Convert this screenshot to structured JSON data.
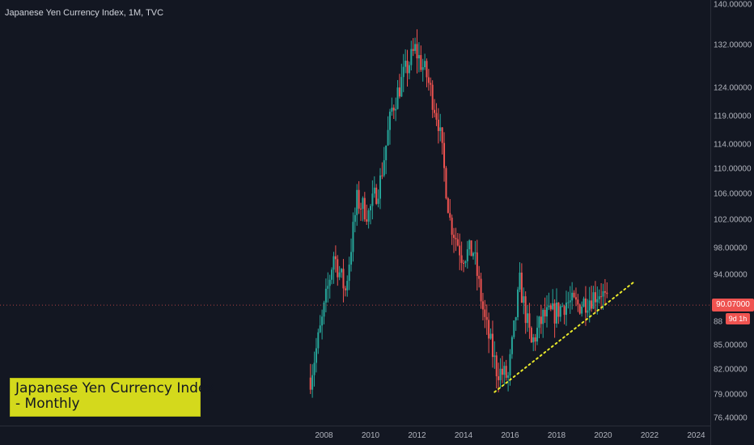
{
  "header": {
    "title": "Japanese Yen Currency Index, 1M, TVC"
  },
  "price_axis": {
    "labels": [
      "140.00000",
      "132.00000",
      "124.00000",
      "119.00000",
      "114.00000",
      "110.00000",
      "106.00000",
      "102.00000",
      "98.00000",
      "94.00000",
      "88",
      "85.00000",
      "82.00000",
      "79.00000",
      "76.40000"
    ],
    "current_price": "90.07000",
    "countdown": "9d 1h"
  },
  "time_axis": {
    "labels": [
      "2008",
      "2010",
      "2012",
      "2014",
      "2016",
      "2018",
      "2020",
      "2022",
      "2024"
    ]
  },
  "annotation": {
    "line1": "Japanese Yen Currency Index",
    "line2": "- Monthly"
  },
  "colors": {
    "up": "#26a69a",
    "down": "#ef5350",
    "trendline": "#e8e82a",
    "background": "#131722",
    "note_bg": "#d4d91c"
  },
  "chart_data": {
    "type": "candlestick",
    "title": "Japanese Yen Currency Index, 1M, TVC",
    "xlabel": "",
    "ylabel": "",
    "y_scale": "log",
    "ylim": [
      76.4,
      140
    ],
    "x": [
      "2007-06",
      "2007-12",
      "2008-06",
      "2008-12",
      "2009-06",
      "2009-12",
      "2010-06",
      "2010-12",
      "2011-06",
      "2011-12",
      "2012-06",
      "2012-12",
      "2013-06",
      "2013-12",
      "2014-06",
      "2014-12",
      "2015-06",
      "2015-12",
      "2016-06",
      "2016-12",
      "2017-06",
      "2017-12",
      "2018-06",
      "2018-12",
      "2019-06",
      "2019-12",
      "2020-03"
    ],
    "close": [
      81.0,
      88.0,
      97.0,
      92.0,
      105.0,
      103.0,
      108.0,
      120.0,
      126.0,
      131.0,
      126.0,
      118.0,
      102.0,
      97.0,
      97.5,
      88.0,
      82.0,
      81.0,
      93.0,
      85.0,
      88.5,
      89.0,
      90.5,
      90.0,
      91.0,
      92.0,
      90.07
    ],
    "trendline": {
      "style": "dotted",
      "start": {
        "x": "2015-05",
        "y": 79.3
      },
      "end": {
        "x": "2021-05",
        "y": 93.2
      }
    },
    "current_price": 90.07,
    "grid": false,
    "legend": "none"
  }
}
